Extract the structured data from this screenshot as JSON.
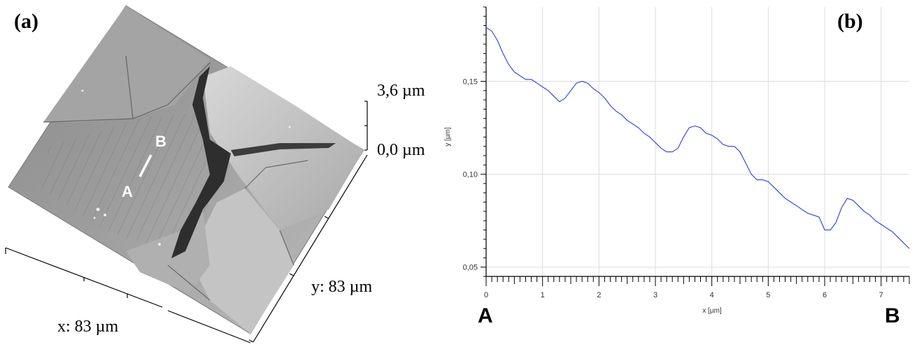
{
  "figure": {
    "panel_a_label": "(a)",
    "panel_b_label": "(b)"
  },
  "afm_image": {
    "z_top_label": "3,6 µm",
    "z_bottom_label": "0,0 µm",
    "x_extent_label": "x: 83 µm",
    "y_extent_label": "y: 83 µm",
    "profile_start_marker": "A",
    "profile_end_marker": "B",
    "colors": {
      "surface_base": "#9a9a9a",
      "groove": "#2a2a2a",
      "line": "#ffffff"
    }
  },
  "profile_endpoints": {
    "start": "A",
    "end": "B"
  },
  "chart_data": {
    "type": "line",
    "title": "",
    "xlabel": "x [µm]",
    "ylabel": "y [µm]",
    "xlim": [
      0,
      7.5
    ],
    "ylim": [
      0.045,
      0.19
    ],
    "x_ticks": [
      0,
      1,
      2,
      3,
      4,
      5,
      6,
      7
    ],
    "x_tick_labels": [
      "0",
      "1",
      "2",
      "3",
      "4",
      "5",
      "6",
      "7"
    ],
    "y_ticks": [
      0.05,
      0.1,
      0.15
    ],
    "y_tick_labels": [
      "0,05",
      "0,10",
      "0,15"
    ],
    "grid": true,
    "line_color": "#2b3fd8",
    "series": [
      {
        "x": [
          0,
          0.1,
          0.2,
          0.3,
          0.4,
          0.5,
          0.6,
          0.7,
          0.8,
          0.9,
          1.0,
          1.1,
          1.2,
          1.3,
          1.4,
          1.5,
          1.6,
          1.7,
          1.8,
          1.9,
          2.0,
          2.1,
          2.2,
          2.3,
          2.4,
          2.5,
          2.6,
          2.7,
          2.8,
          2.9,
          3.0,
          3.1,
          3.2,
          3.3,
          3.4,
          3.5,
          3.6,
          3.7,
          3.8,
          3.9,
          4.0,
          4.1,
          4.2,
          4.3,
          4.4,
          4.5,
          4.6,
          4.7,
          4.8,
          4.9,
          5.0,
          5.1,
          5.2,
          5.3,
          5.4,
          5.5,
          5.6,
          5.7,
          5.8,
          5.9,
          6.0,
          6.1,
          6.2,
          6.3,
          6.4,
          6.5,
          6.6,
          6.7,
          6.8,
          6.9,
          7.0,
          7.1,
          7.2,
          7.3,
          7.4,
          7.5
        ],
        "values": [
          0.179,
          0.177,
          0.172,
          0.165,
          0.159,
          0.155,
          0.153,
          0.151,
          0.151,
          0.149,
          0.147,
          0.145,
          0.142,
          0.139,
          0.141,
          0.145,
          0.149,
          0.15,
          0.149,
          0.146,
          0.144,
          0.141,
          0.137,
          0.134,
          0.132,
          0.129,
          0.127,
          0.125,
          0.122,
          0.12,
          0.117,
          0.114,
          0.112,
          0.112,
          0.114,
          0.12,
          0.125,
          0.126,
          0.125,
          0.122,
          0.121,
          0.119,
          0.116,
          0.115,
          0.115,
          0.112,
          0.106,
          0.1,
          0.097,
          0.097,
          0.096,
          0.093,
          0.09,
          0.087,
          0.085,
          0.083,
          0.081,
          0.079,
          0.078,
          0.077,
          0.07,
          0.07,
          0.074,
          0.082,
          0.087,
          0.086,
          0.083,
          0.08,
          0.078,
          0.075,
          0.073,
          0.071,
          0.069,
          0.066,
          0.063,
          0.06
        ]
      }
    ]
  }
}
